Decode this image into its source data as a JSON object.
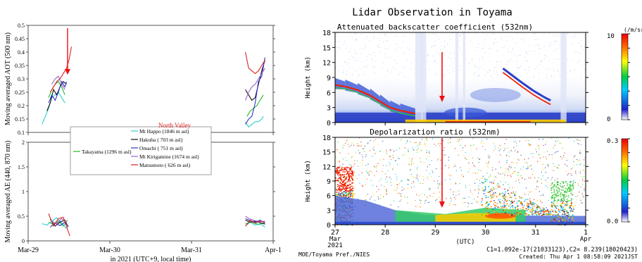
{
  "chart_data": [
    {
      "type": "line",
      "panel": "top",
      "ylabel": "Moving averaged AOT (500 nm)",
      "ylim": [
        0.1,
        0.5
      ],
      "yticks": [
        "0.1",
        "0.15",
        "0.2",
        "0.25",
        "0.3",
        "0.35",
        "0.4",
        "0.45",
        "0.5"
      ],
      "xticks": [
        "Mar-29",
        "Mar-30",
        "Mar-31",
        "Apr-1"
      ],
      "xlabel": "in 2021 (UTC+9, local time)",
      "legend_header": "North Valley",
      "series": [
        {
          "name": "Takayama (1296 m asl)",
          "color": "#22bb22",
          "segments": [
            [
              [
                0.25,
                0.23
              ],
              [
                0.29,
                0.26
              ],
              [
                0.33,
                0.28
              ],
              [
                0.37,
                0.29
              ],
              [
                0.41,
                0.27
              ],
              [
                0.45,
                0.24
              ]
            ],
            [
              [
                2.68,
                0.16
              ],
              [
                2.72,
                0.18
              ],
              [
                2.76,
                0.19
              ],
              [
                2.8,
                0.2
              ],
              [
                2.84,
                0.22
              ],
              [
                2.88,
                0.24
              ]
            ]
          ]
        },
        {
          "name": "Mt Happo (1846 m asl)",
          "color": "#33cccc",
          "segments": [
            [
              [
                0.17,
                0.13
              ],
              [
                0.21,
                0.16
              ],
              [
                0.25,
                0.19
              ],
              [
                0.29,
                0.23
              ],
              [
                0.33,
                0.24
              ],
              [
                0.37,
                0.25
              ],
              [
                0.41,
                0.23
              ],
              [
                0.45,
                0.21
              ]
            ],
            [
              [
                2.66,
                0.14
              ],
              [
                2.7,
                0.12
              ],
              [
                2.74,
                0.13
              ],
              [
                2.78,
                0.14
              ],
              [
                2.82,
                0.14
              ],
              [
                2.86,
                0.15
              ],
              [
                2.88,
                0.16
              ]
            ]
          ]
        },
        {
          "name": "Hakuba ( 703 m asl)",
          "color": "#111111",
          "segments": [
            [
              [
                0.23,
                0.18
              ],
              [
                0.27,
                0.21
              ],
              [
                0.31,
                0.26
              ],
              [
                0.35,
                0.24
              ],
              [
                0.39,
                0.27
              ],
              [
                0.43,
                0.29
              ],
              [
                0.47,
                0.28
              ]
            ],
            [
              [
                2.66,
                0.26
              ],
              [
                2.7,
                0.24
              ],
              [
                2.74,
                0.22
              ],
              [
                2.78,
                0.23
              ],
              [
                2.82,
                0.28
              ],
              [
                2.86,
                0.33
              ],
              [
                2.9,
                0.37
              ]
            ]
          ]
        },
        {
          "name": "Omachi ( 751 m asl)",
          "color": "#3333cc",
          "segments": [
            [
              [
                0.25,
                0.21
              ],
              [
                0.29,
                0.24
              ],
              [
                0.33,
                0.22
              ],
              [
                0.37,
                0.25
              ],
              [
                0.41,
                0.29
              ],
              [
                0.45,
                0.27
              ],
              [
                0.47,
                0.29
              ]
            ],
            [
              [
                2.66,
                0.13
              ],
              [
                2.7,
                0.15
              ],
              [
                2.74,
                0.16
              ],
              [
                2.78,
                0.21
              ],
              [
                2.82,
                0.29
              ],
              [
                2.86,
                0.31
              ],
              [
                2.9,
                0.38
              ]
            ]
          ]
        },
        {
          "name": "Mt Kirigamine (1674 m asl)",
          "color": "#9966cc",
          "segments": [
            [
              [
                0.29,
                0.28
              ],
              [
                0.33,
                0.3
              ],
              [
                0.37,
                0.31
              ],
              [
                0.41,
                0.28
              ],
              [
                0.45,
                0.26
              ]
            ],
            [
              [
                2.66,
                0.22
              ],
              [
                2.7,
                0.25
              ],
              [
                2.74,
                0.27
              ],
              [
                2.78,
                0.28
              ],
              [
                2.82,
                0.3
              ],
              [
                2.86,
                0.32
              ],
              [
                2.9,
                0.34
              ]
            ]
          ]
        },
        {
          "name": "Matsumoto ( 626 m asl)",
          "color": "#dd2222",
          "segments": [
            [
              [
                0.27,
                0.25
              ],
              [
                0.31,
                0.27
              ],
              [
                0.35,
                0.29
              ],
              [
                0.39,
                0.3
              ],
              [
                0.43,
                0.32
              ],
              [
                0.47,
                0.34
              ],
              [
                0.5,
                0.37
              ],
              [
                0.53,
                0.42
              ]
            ],
            [
              [
                2.66,
                0.4
              ],
              [
                2.7,
                0.34
              ],
              [
                2.74,
                0.33
              ],
              [
                2.78,
                0.32
              ],
              [
                2.82,
                0.33
              ],
              [
                2.86,
                0.35
              ],
              [
                2.9,
                0.37
              ]
            ]
          ]
        }
      ]
    },
    {
      "type": "line",
      "panel": "bottom",
      "ylabel": "Moving averaged AE (440, 870 nm)",
      "ylim": [
        0,
        2
      ],
      "yticks": [
        "0",
        "0.5",
        "1",
        "1.5",
        "2"
      ],
      "series": [
        {
          "name": "Takayama (1296 m asl)",
          "color": "#22bb22",
          "segments": [
            [
              [
                0.25,
                0.38
              ],
              [
                0.31,
                0.33
              ],
              [
                0.37,
                0.4
              ],
              [
                0.43,
                0.3
              ],
              [
                0.48,
                0.42
              ]
            ],
            [
              [
                2.66,
                0.35
              ],
              [
                2.74,
                0.38
              ],
              [
                2.82,
                0.33
              ],
              [
                2.88,
                0.36
              ]
            ]
          ]
        },
        {
          "name": "Mt Happo (1846 m asl)",
          "color": "#33cccc",
          "segments": [
            [
              [
                0.17,
                0.35
              ],
              [
                0.23,
                0.32
              ],
              [
                0.29,
                0.4
              ],
              [
                0.35,
                0.47
              ],
              [
                0.41,
                0.36
              ],
              [
                0.47,
                0.25
              ]
            ],
            [
              [
                2.66,
                0.3
              ],
              [
                2.72,
                0.38
              ],
              [
                2.78,
                0.32
              ],
              [
                2.84,
                0.35
              ],
              [
                2.9,
                0.28
              ]
            ]
          ]
        },
        {
          "name": "Hakuba ( 703 m asl)",
          "color": "#111111",
          "segments": [
            [
              [
                0.27,
                0.44
              ],
              [
                0.33,
                0.3
              ],
              [
                0.39,
                0.38
              ],
              [
                0.45,
                0.42
              ],
              [
                0.49,
                0.28
              ]
            ],
            [
              [
                2.66,
                0.42
              ],
              [
                2.72,
                0.38
              ],
              [
                2.78,
                0.4
              ],
              [
                2.84,
                0.37
              ],
              [
                2.9,
                0.34
              ]
            ]
          ]
        },
        {
          "name": "Omachi ( 751 m asl)",
          "color": "#3333cc",
          "segments": [
            [
              [
                0.27,
                0.28
              ],
              [
                0.33,
                0.36
              ],
              [
                0.39,
                0.31
              ],
              [
                0.45,
                0.38
              ],
              [
                0.49,
                0.3
              ]
            ],
            [
              [
                2.66,
                0.45
              ],
              [
                2.72,
                0.41
              ],
              [
                2.78,
                0.38
              ],
              [
                2.84,
                0.42
              ],
              [
                2.9,
                0.36
              ]
            ]
          ]
        },
        {
          "name": "Mt Kirigamine (1674 m asl)",
          "color": "#9966cc",
          "segments": [
            [
              [
                0.29,
                0.4
              ],
              [
                0.35,
                0.35
              ],
              [
                0.41,
                0.45
              ],
              [
                0.47,
                0.38
              ]
            ],
            [
              [
                2.66,
                0.5
              ],
              [
                2.72,
                0.44
              ],
              [
                2.78,
                0.41
              ],
              [
                2.84,
                0.39
              ],
              [
                2.9,
                0.4
              ]
            ]
          ]
        },
        {
          "name": "Matsumoto ( 626 m asl)",
          "color": "#dd2222",
          "segments": [
            [
              [
                0.25,
                0.55
              ],
              [
                0.31,
                0.3
              ],
              [
                0.37,
                0.45
              ],
              [
                0.43,
                0.48
              ],
              [
                0.51,
                0.1
              ]
            ],
            [
              [
                2.66,
                0.3
              ],
              [
                2.72,
                0.42
              ],
              [
                2.78,
                0.36
              ],
              [
                2.84,
                0.4
              ],
              [
                2.9,
                0.38
              ]
            ]
          ]
        }
      ]
    },
    {
      "type": "heatmap",
      "panel": "lidar-top",
      "title": "Lidar Observation in Toyama",
      "subtitle": "Attenuated backscatter coefficient (532nm)",
      "ylabel": "Height (km)",
      "ylim": [
        0,
        18
      ],
      "yticks": [
        "0",
        "3",
        "6",
        "9",
        "12",
        "15",
        "18"
      ],
      "colorbar_ticks": [
        "0",
        "10"
      ],
      "colorbar_label": "(/m/sr)"
    },
    {
      "type": "heatmap",
      "panel": "lidar-bottom",
      "subtitle": "Depolarization ratio (532nm)",
      "ylabel": "Height (km)",
      "ylim": [
        0,
        18
      ],
      "yticks": [
        "0",
        "3",
        "6",
        "9",
        "12",
        "15",
        "18"
      ],
      "colorbar_ticks": [
        "0.0",
        "0.3"
      ],
      "xticks": [
        "27",
        "28",
        "29",
        "30",
        "31",
        "1"
      ],
      "xtick_sub": [
        "Mar",
        "Apr"
      ],
      "xtick_year": "2021",
      "xlabel": "(UTC)"
    }
  ],
  "footer": {
    "left": "MOE/Toyama Pref./NIES",
    "c1c2": "C1=1.092e-17(21033123),C2= 8.239(18020423)",
    "created": "Created: Thu Apr  1 08:58:09 2021JST"
  }
}
